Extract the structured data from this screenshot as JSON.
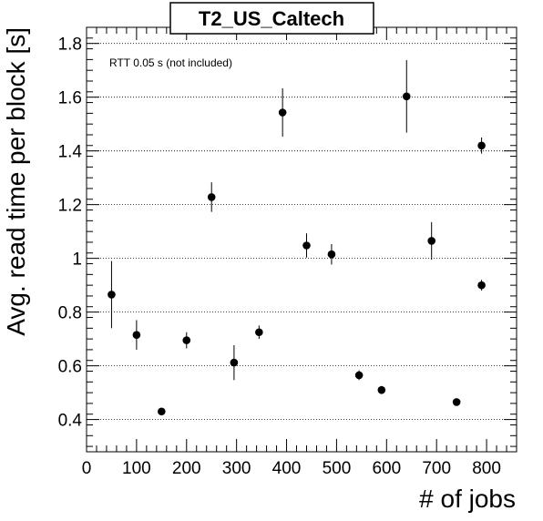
{
  "chart_data": {
    "type": "scatter",
    "title": "T2_US_Caltech",
    "xlabel": "# of jobs",
    "ylabel": "Avg. read time per block [s]",
    "annotation": "RTT 0.05 s (not included)",
    "xlim": [
      0,
      860
    ],
    "ylim": [
      0.28,
      1.86
    ],
    "xticks": [
      0,
      100,
      200,
      300,
      400,
      500,
      600,
      700,
      800
    ],
    "yticks": [
      0.4,
      0.6,
      0.8,
      1,
      1.2,
      1.4,
      1.6,
      1.8
    ],
    "ytick_labels": [
      "0.4",
      "0.6",
      "0.8",
      "1",
      "1.2",
      "1.4",
      "1.6",
      "1.8"
    ],
    "grid_y": true,
    "grid_x": false,
    "points": [
      {
        "x": 50,
        "y": 0.865,
        "err": 0.125
      },
      {
        "x": 100,
        "y": 0.715,
        "err": 0.055
      },
      {
        "x": 150,
        "y": 0.43,
        "err": 0.01
      },
      {
        "x": 200,
        "y": 0.695,
        "err": 0.03
      },
      {
        "x": 250,
        "y": 1.228,
        "err": 0.055
      },
      {
        "x": 295,
        "y": 0.612,
        "err": 0.065
      },
      {
        "x": 345,
        "y": 0.725,
        "err": 0.025
      },
      {
        "x": 392,
        "y": 1.543,
        "err": 0.09
      },
      {
        "x": 440,
        "y": 1.048,
        "err": 0.045
      },
      {
        "x": 490,
        "y": 1.015,
        "err": 0.038
      },
      {
        "x": 545,
        "y": 0.565,
        "err": 0.018
      },
      {
        "x": 590,
        "y": 0.51,
        "err": 0.015
      },
      {
        "x": 640,
        "y": 1.603,
        "err": 0.135
      },
      {
        "x": 690,
        "y": 1.065,
        "err": 0.07
      },
      {
        "x": 740,
        "y": 0.465,
        "err": 0.008
      },
      {
        "x": 790,
        "y": 0.9,
        "err": 0.02
      },
      {
        "x": 790,
        "y": 1.42,
        "err": 0.03
      }
    ]
  }
}
